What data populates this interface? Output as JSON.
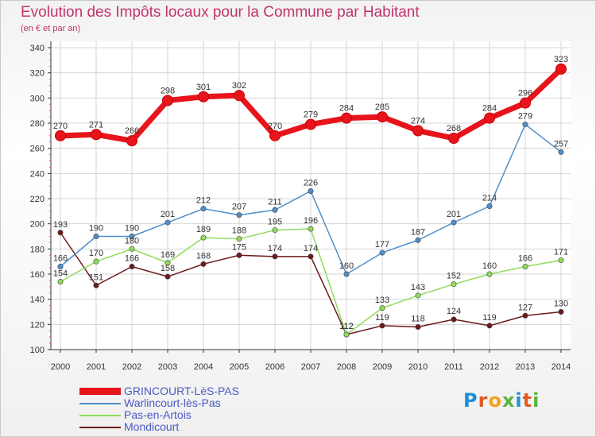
{
  "title": "Evolution des Impôts locaux pour la Commune par Habitant",
  "subtitle": "(en € et par an)",
  "logo": {
    "letters": [
      "P",
      "r",
      "o",
      "x",
      "i",
      "t",
      "i"
    ],
    "colors": [
      "#1f8fd6",
      "#e25b22",
      "#f2a21e",
      "#59b43c",
      "#1f8fd6",
      "#e25b22",
      "#59b43c"
    ]
  },
  "chart_data": {
    "type": "line",
    "title": "Evolution des Impôts locaux pour la Commune par Habitant",
    "subtitle": "(en € et par an)",
    "x": [
      "2000",
      "2001",
      "2002",
      "2003",
      "2004",
      "2005",
      "2006",
      "2007",
      "2008",
      "2009",
      "2010",
      "2011",
      "2012",
      "2013",
      "2014"
    ],
    "ylim": [
      100,
      340
    ],
    "yticks": [
      100,
      120,
      140,
      160,
      180,
      200,
      220,
      240,
      260,
      280,
      300,
      320,
      340
    ],
    "grid": true,
    "legend_position": "bottom-left",
    "series": [
      {
        "name": "GRINCOURT-LèS-PAS",
        "color": "#e8141b",
        "values": [
          270,
          271,
          266,
          298,
          301,
          302,
          270,
          279,
          284,
          285,
          274,
          268,
          284,
          296,
          323
        ]
      },
      {
        "name": "Warlincourt-lès-Pas",
        "color": "#4f8fcb",
        "values": [
          166,
          190,
          190,
          201,
          212,
          207,
          211,
          226,
          160,
          177,
          187,
          201,
          214,
          279,
          257
        ]
      },
      {
        "name": "Pas-en-Artois",
        "color": "#8fdc5a",
        "values": [
          154,
          170,
          180,
          169,
          189,
          188,
          195,
          196,
          112,
          133,
          143,
          152,
          160,
          166,
          171
        ]
      },
      {
        "name": "Mondicourt",
        "color": "#6b1a1a",
        "values": [
          193,
          151,
          166,
          158,
          168,
          175,
          174,
          174,
          112,
          119,
          118,
          124,
          119,
          127,
          130
        ]
      }
    ]
  }
}
